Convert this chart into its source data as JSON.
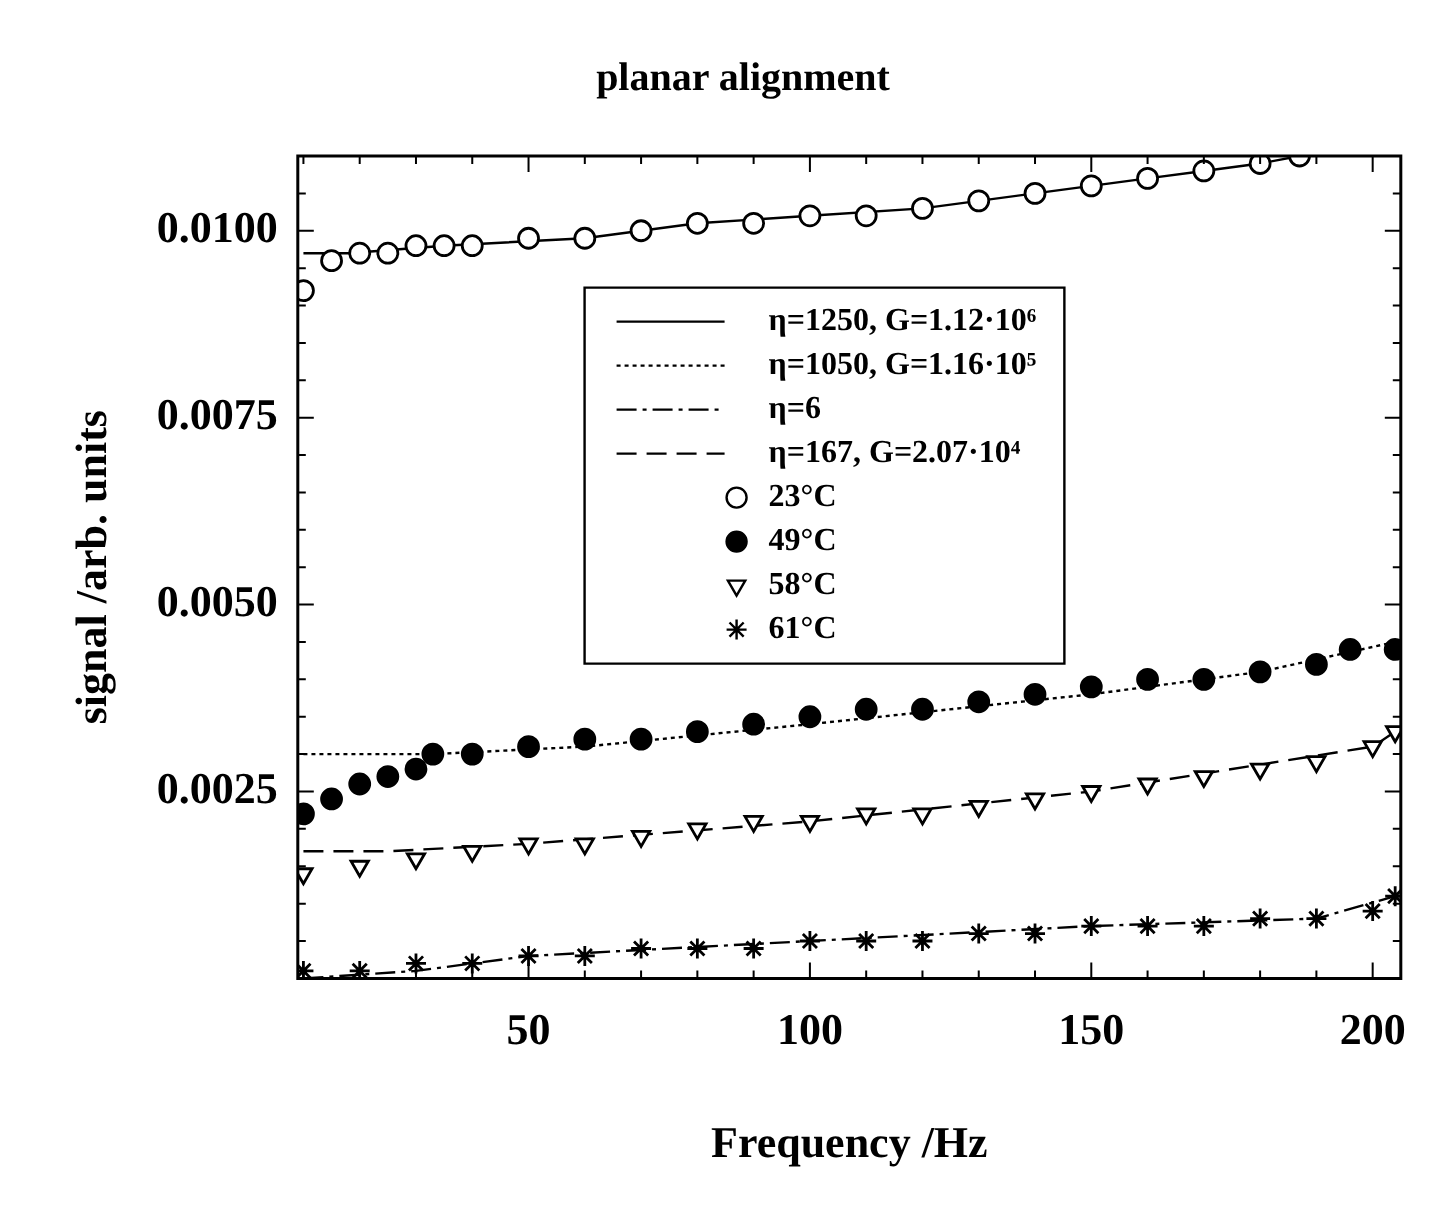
{
  "chart_data": {
    "type": "scatter",
    "title": "planar alignment",
    "xlabel": "Frequency /Hz",
    "ylabel": "signal /arb. units",
    "xlim": [
      9,
      205
    ],
    "ylim": [
      0,
      0.011
    ],
    "xticks": [
      {
        "value": 10,
        "label": null
      },
      {
        "value": 20,
        "label": null
      },
      {
        "value": 30,
        "label": null
      },
      {
        "value": 40,
        "label": null
      },
      50,
      {
        "value": 60,
        "label": null
      },
      {
        "value": 70,
        "label": null
      },
      {
        "value": 80,
        "label": null
      },
      {
        "value": 90,
        "label": null
      },
      100,
      {
        "value": 110,
        "label": null
      },
      {
        "value": 120,
        "label": null
      },
      {
        "value": 130,
        "label": null
      },
      {
        "value": 140,
        "label": null
      },
      150,
      {
        "value": 160,
        "label": null
      },
      {
        "value": 170,
        "label": null
      },
      {
        "value": 180,
        "label": null
      },
      {
        "value": 190,
        "label": null
      },
      200
    ],
    "yticks": [
      {
        "value": 0.0005,
        "label": null
      },
      {
        "value": 0.001,
        "label": null
      },
      {
        "value": 0.0015,
        "label": null
      },
      {
        "value": 0.002,
        "label": null
      },
      {
        "value": 0.0025,
        "label": "0.0025"
      },
      {
        "value": 0.003,
        "label": null
      },
      {
        "value": 0.0035,
        "label": null
      },
      {
        "value": 0.004,
        "label": null
      },
      {
        "value": 0.0045,
        "label": null
      },
      {
        "value": 0.005,
        "label": "0.0050"
      },
      {
        "value": 0.0055,
        "label": null
      },
      {
        "value": 0.006,
        "label": null
      },
      {
        "value": 0.0065,
        "label": null
      },
      {
        "value": 0.007,
        "label": null
      },
      {
        "value": 0.0075,
        "label": "0.0075"
      },
      {
        "value": 0.008,
        "label": null
      },
      {
        "value": 0.0085,
        "label": null
      },
      {
        "value": 0.009,
        "label": null
      },
      {
        "value": 0.0095,
        "label": null
      },
      {
        "value": 0.01,
        "label": "0.0100"
      },
      {
        "value": 0.0105,
        "label": null
      }
    ],
    "grid": false,
    "legend": "top",
    "series": [
      {
        "name": "η=1250, G=1.12·10⁶",
        "type": "line",
        "line_style": "solid",
        "color": "#000000",
        "x": [
          10,
          18,
          35,
          60,
          80,
          100,
          120,
          140,
          150,
          160,
          170,
          180,
          187
        ],
        "values": [
          0.0097,
          0.0097,
          0.0098,
          0.0099,
          0.0101,
          0.0102,
          0.0103,
          0.0105,
          0.0106,
          0.0107,
          0.0108,
          0.0109,
          0.011
        ]
      },
      {
        "name": "η=1050, G=1.16·10⁵",
        "type": "line",
        "line_style": "dotted",
        "color": "#000000",
        "x": [
          10,
          33,
          60,
          100,
          150,
          180,
          204
        ],
        "values": [
          0.003,
          0.003,
          0.0031,
          0.0034,
          0.0038,
          0.0041,
          0.0045
        ]
      },
      {
        "name": "η=6",
        "type": "line",
        "line_style": "dashdot",
        "color": "#000000",
        "x": [
          10,
          30,
          50,
          100,
          150,
          190,
          204
        ],
        "values": [
          0.0,
          0.0001,
          0.0003,
          0.0005,
          0.0007,
          0.0008,
          0.0011
        ]
      },
      {
        "name": "η=167, G=2.07·10⁴",
        "type": "line",
        "line_style": "dashed",
        "color": "#000000",
        "x": [
          10,
          25,
          50,
          100,
          150,
          200,
          204
        ],
        "values": [
          0.0017,
          0.0017,
          0.0018,
          0.0021,
          0.0025,
          0.0031,
          0.0033
        ]
      },
      {
        "name": "23°C",
        "type": "scatter",
        "marker": "circle",
        "color": "#ffffff",
        "x": [
          10,
          15,
          20,
          25,
          30,
          35,
          40,
          50,
          60,
          70,
          80,
          90,
          100,
          110,
          120,
          130,
          140,
          150,
          160,
          170,
          180,
          187
        ],
        "values": [
          0.0092,
          0.0096,
          0.0097,
          0.0097,
          0.0098,
          0.0098,
          0.0098,
          0.0099,
          0.0099,
          0.01,
          0.0101,
          0.0101,
          0.0102,
          0.0102,
          0.0103,
          0.0104,
          0.0105,
          0.0106,
          0.0107,
          0.0108,
          0.0109,
          0.011
        ]
      },
      {
        "name": "49°C",
        "type": "scatter",
        "marker": "circle",
        "color": "#000000",
        "x": [
          10,
          15,
          20,
          25,
          30,
          33,
          40,
          50,
          60,
          70,
          80,
          90,
          100,
          110,
          120,
          130,
          140,
          150,
          160,
          170,
          180,
          190,
          196,
          204
        ],
        "values": [
          0.0022,
          0.0024,
          0.0026,
          0.0027,
          0.0028,
          0.003,
          0.003,
          0.0031,
          0.0032,
          0.0032,
          0.0033,
          0.0034,
          0.0035,
          0.0036,
          0.0036,
          0.0037,
          0.0038,
          0.0039,
          0.004,
          0.004,
          0.0041,
          0.0042,
          0.0044,
          0.0044
        ]
      },
      {
        "name": "58°C",
        "type": "scatter",
        "marker": "triangle",
        "color": "#ffffff",
        "x": [
          10,
          20,
          30,
          40,
          50,
          60,
          70,
          80,
          90,
          100,
          110,
          120,
          130,
          140,
          150,
          160,
          170,
          180,
          190,
          200,
          204
        ],
        "values": [
          0.0014,
          0.0015,
          0.0016,
          0.0017,
          0.0018,
          0.0018,
          0.0019,
          0.002,
          0.0021,
          0.0021,
          0.0022,
          0.0022,
          0.0023,
          0.0024,
          0.0025,
          0.0026,
          0.0027,
          0.0028,
          0.0029,
          0.0031,
          0.0033
        ]
      },
      {
        "name": "61°C",
        "type": "scatter",
        "marker": "cross",
        "color": "#000000",
        "x": [
          10,
          20,
          30,
          40,
          50,
          60,
          70,
          80,
          90,
          100,
          110,
          120,
          130,
          140,
          150,
          160,
          170,
          180,
          190,
          200,
          204
        ],
        "values": [
          0.0001,
          0.0001,
          0.0002,
          0.0002,
          0.0003,
          0.0003,
          0.0004,
          0.0004,
          0.0004,
          0.0005,
          0.0005,
          0.0005,
          0.0006,
          0.0006,
          0.0007,
          0.0007,
          0.0007,
          0.0008,
          0.0008,
          0.0009,
          0.0011
        ]
      }
    ]
  }
}
